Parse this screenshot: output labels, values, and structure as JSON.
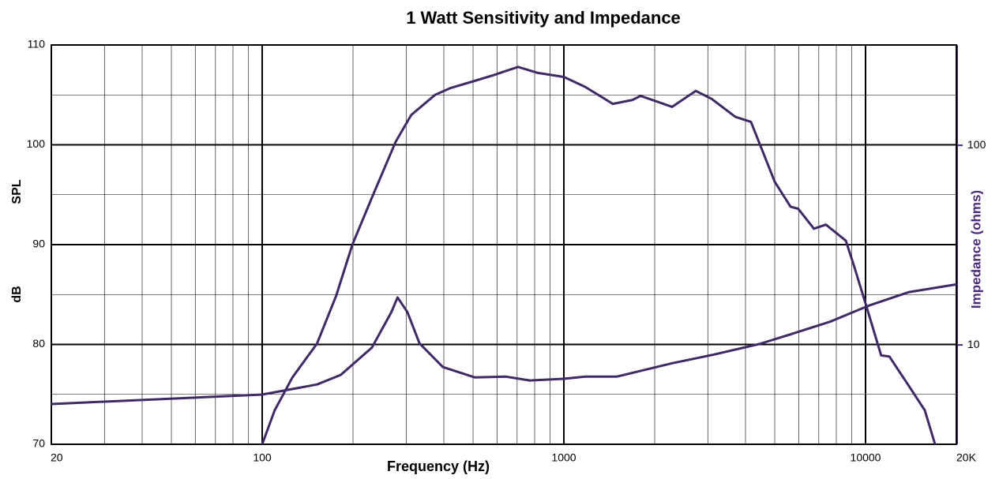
{
  "chart_data": {
    "type": "line",
    "title": "1 Watt Sensitivity and Impedance",
    "xlabel": "Frequency (Hz)",
    "ylabel": [
      "SPL",
      "dB"
    ],
    "y2label": "Impedance (ohms)",
    "xscale": "log",
    "y2scale": "log",
    "xlim": [
      20,
      20000
    ],
    "xticks": [
      20,
      100,
      1000,
      10000,
      {
        "value": 20000,
        "label": "20K"
      }
    ],
    "x_minor_grid": [
      30,
      40,
      50,
      60,
      70,
      80,
      90,
      200,
      300,
      400,
      500,
      600,
      700,
      800,
      900,
      2000,
      3000,
      4000,
      5000,
      6000,
      7000,
      8000,
      9000
    ],
    "ylim": [
      70,
      110
    ],
    "yticks": [
      70,
      80,
      90,
      100,
      110
    ],
    "y_minor_grid": [
      75,
      85,
      95,
      105
    ],
    "y2lim": [
      3.18,
      318
    ],
    "y2ticks": [
      10,
      100
    ],
    "grid": true,
    "y2color": "#4b2a7a",
    "series": [
      {
        "color": "#3f2a66",
        "x": [
          100,
          110,
          126,
          152,
          176,
          199,
          231,
          277,
          312,
          374,
          422,
          506,
          588,
          705,
          820,
          1000,
          1177,
          1452,
          1690,
          1795,
          2285,
          2737,
          3090,
          3700,
          4170,
          5000,
          5640,
          5980,
          6740,
          7390,
          8600,
          9130,
          10000,
          11270,
          11990,
          13950,
          15720,
          17000
        ],
        "values": [
          70,
          73.4,
          76.7,
          80.1,
          84.9,
          90,
          94.7,
          100.3,
          103,
          105,
          105.7,
          106.4,
          107,
          107.8,
          107.2,
          106.8,
          105.8,
          104.1,
          104.5,
          104.9,
          103.8,
          105.4,
          104.6,
          102.8,
          102.3,
          96.3,
          93.8,
          93.6,
          91.6,
          92,
          90.4,
          88,
          84.1,
          78.9,
          78.8,
          75.8,
          73.4,
          70
        ]
      },
      {
        "color": "#3f2a66",
        "axis": "y2",
        "x": [
          20,
          100,
          152,
          182,
          231,
          268,
          281,
          303,
          332,
          397,
          506,
          643,
          771,
          1000,
          1177,
          1497,
          2285,
          3090,
          4440,
          5640,
          7660,
          10320,
          13950,
          20000
        ],
        "values": [
          5.06,
          5.64,
          6.34,
          7.08,
          9.7,
          14.6,
          17.3,
          14.6,
          10.2,
          7.75,
          6.88,
          6.94,
          6.64,
          6.77,
          6.94,
          6.94,
          8.1,
          8.9,
          10.1,
          11.3,
          13.1,
          15.8,
          18.4,
          20.1
        ]
      }
    ]
  }
}
